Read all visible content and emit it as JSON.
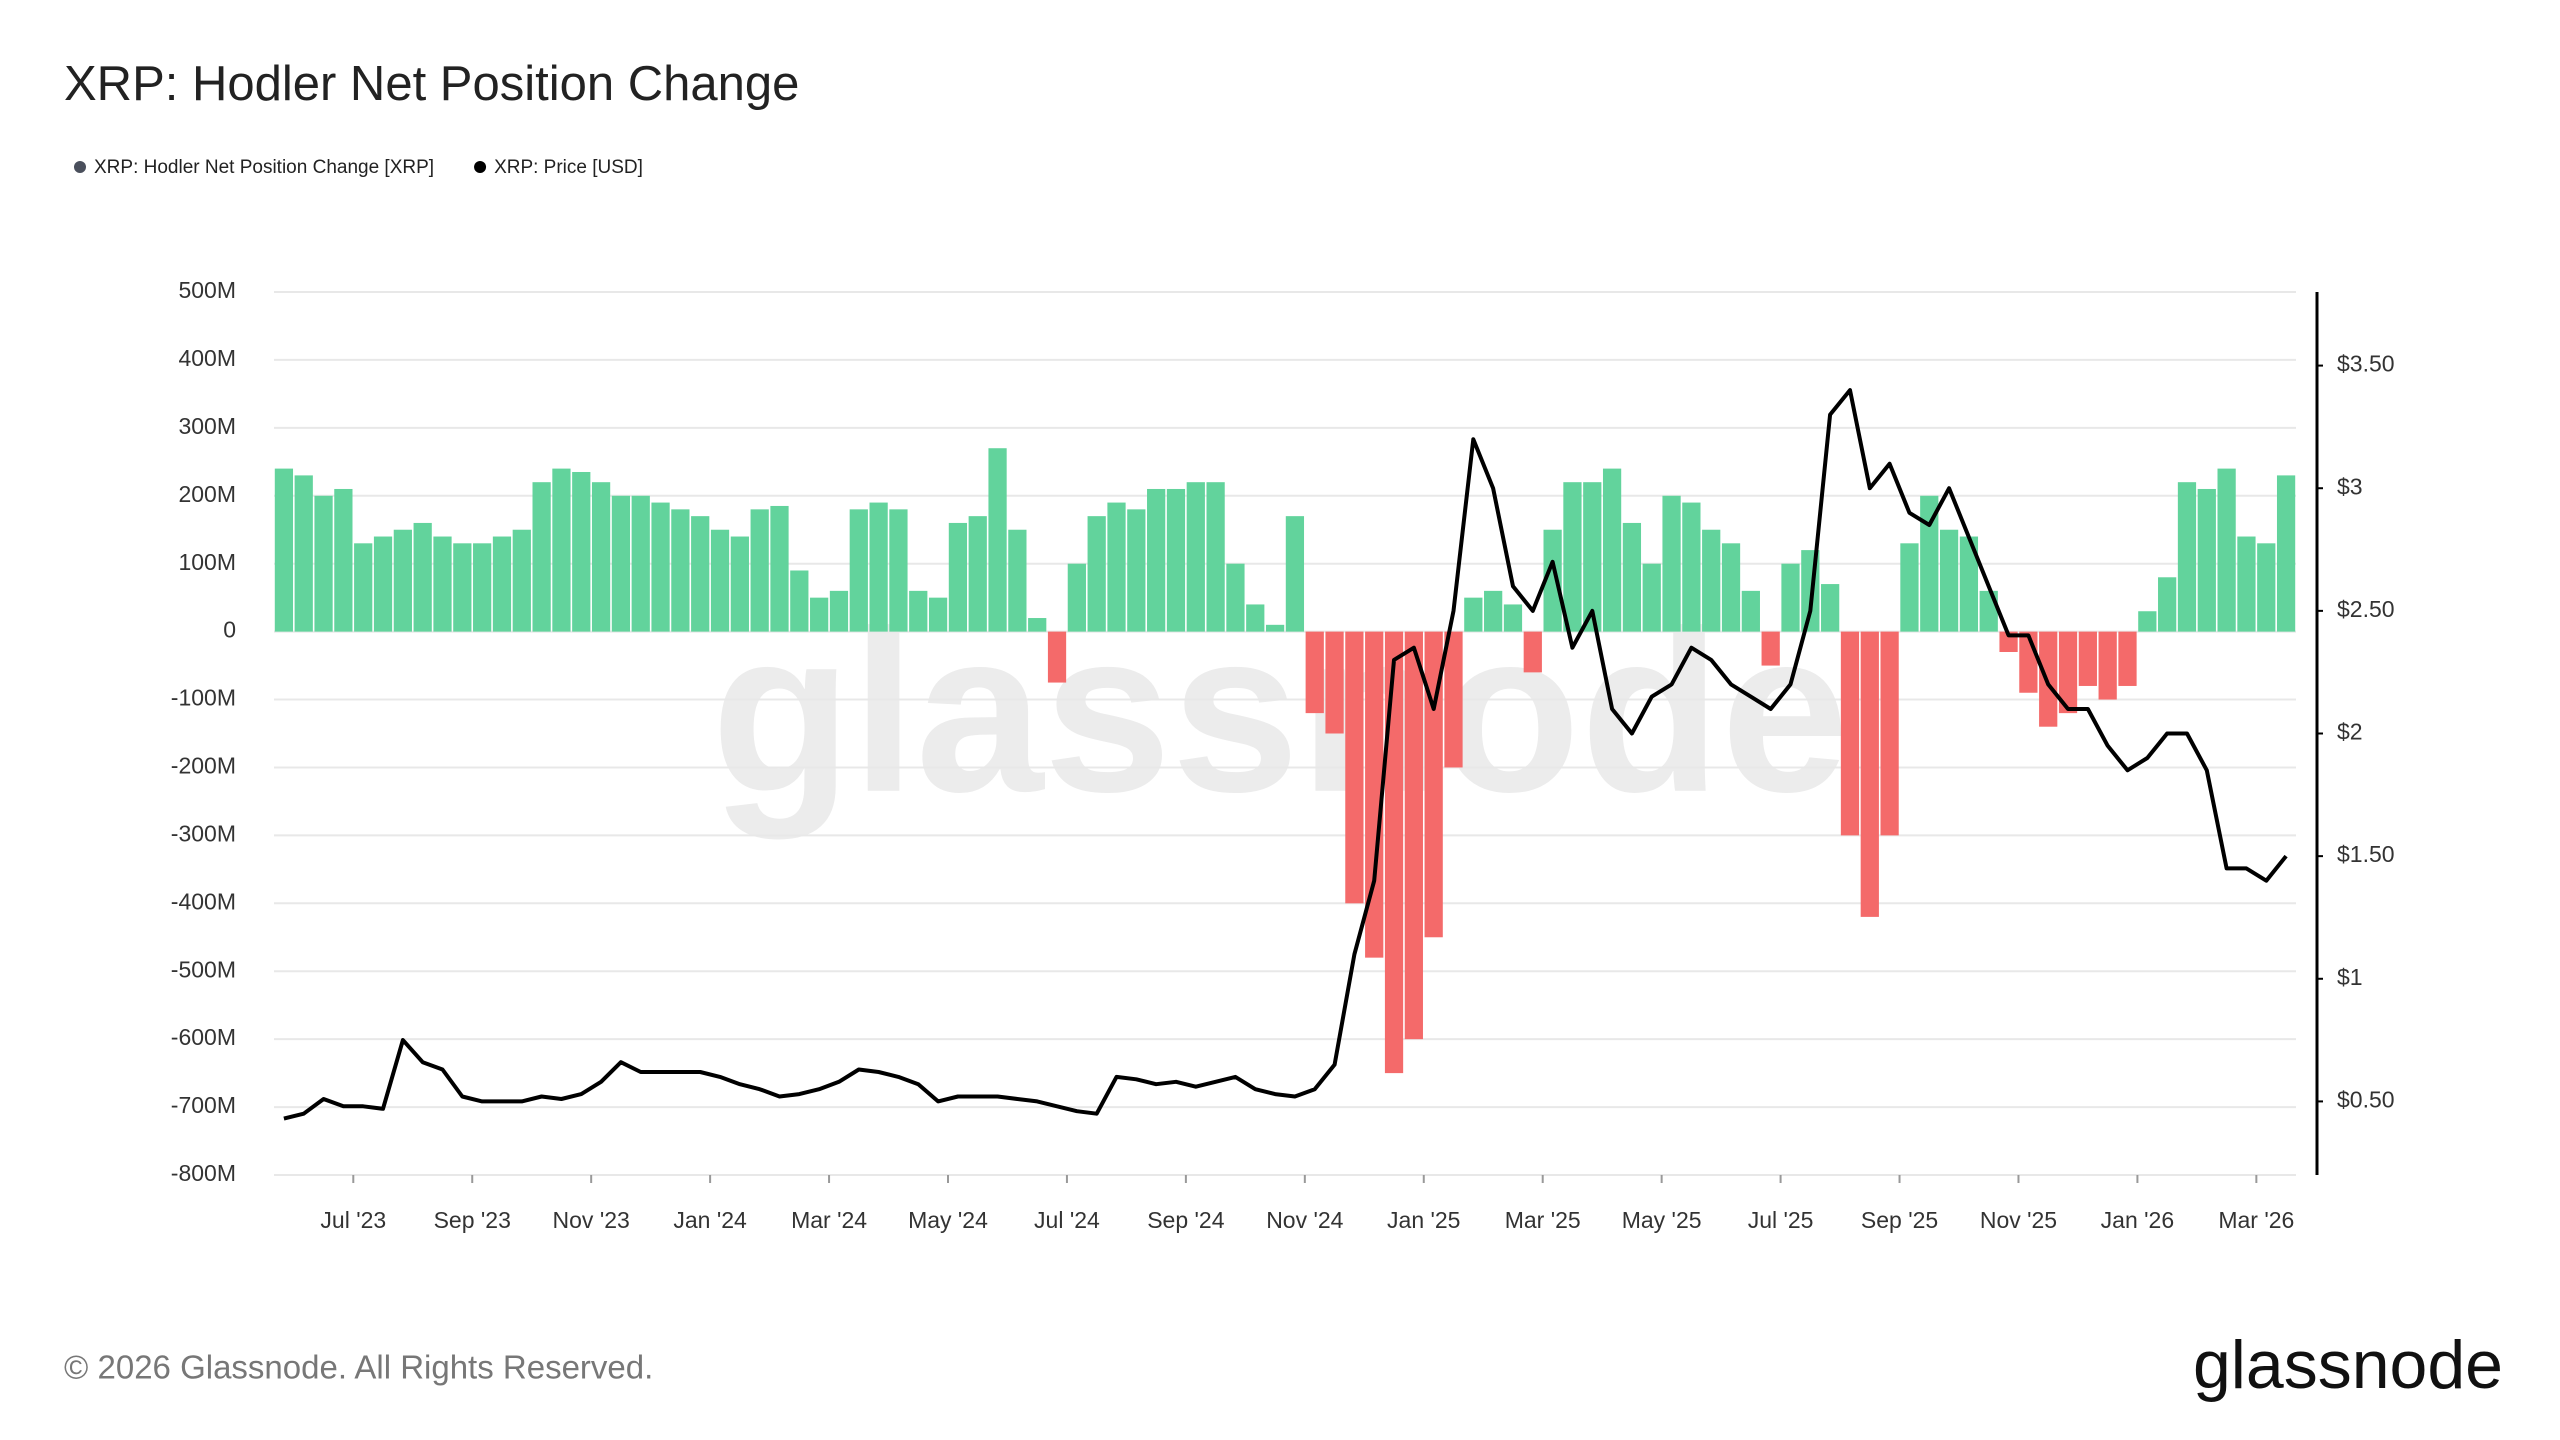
{
  "chart_data": {
    "type": "combo",
    "title": "XRP: Hodler Net Position Change",
    "watermark": "glassnode",
    "footer": "© 2026 Glassnode. All Rights Reserved.",
    "logo": "glassnode",
    "categories": [
      null,
      null,
      null,
      null,
      "Jul '23",
      null,
      null,
      null,
      null,
      null,
      "Sep '23",
      null,
      null,
      null,
      null,
      null,
      "Nov '23",
      null,
      null,
      null,
      null,
      null,
      "Jan '24",
      null,
      null,
      null,
      null,
      null,
      "Mar '24",
      null,
      null,
      null,
      null,
      null,
      "May '24",
      null,
      null,
      null,
      null,
      null,
      "Jul '24",
      null,
      null,
      null,
      null,
      null,
      "Sep '24",
      null,
      null,
      null,
      null,
      null,
      "Nov '24",
      null,
      null,
      null,
      null,
      null,
      "Jan '25",
      null,
      null,
      null,
      null,
      null,
      "Mar '25",
      null,
      null,
      null,
      null,
      null,
      "May '25",
      null,
      null,
      null,
      null,
      null,
      "Jul '25",
      null,
      null,
      null,
      null,
      null,
      "Sep '25",
      null,
      null,
      null,
      null,
      null,
      "Nov '25",
      null,
      null,
      null,
      null,
      null,
      "Jan '26",
      null,
      null,
      null,
      null,
      null,
      "Mar '26",
      null
    ],
    "series": [
      {
        "name": "XRP: Hodler Net Position Change [XRP]",
        "type": "bar",
        "axis": "y",
        "color": "#4a4f5c",
        "positive_color": "#62d39c",
        "negative_color": "#f46a6a",
        "values": [
          240000000.0,
          230000000.0,
          200000000.0,
          210000000.0,
          130000000.0,
          140000000.0,
          150000000.0,
          160000000.0,
          140000000.0,
          130000000.0,
          130000000.0,
          140000000.0,
          150000000.0,
          220000000.0,
          240000000.0,
          235000000.0,
          220000000.0,
          200000000.0,
          200000000.0,
          190000000.0,
          180000000.0,
          170000000.0,
          150000000.0,
          140000000.0,
          180000000.0,
          185000000.0,
          90000000.0,
          50000000.0,
          60000000.0,
          180000000.0,
          190000000.0,
          180000000.0,
          60000000.0,
          50000000.0,
          160000000.0,
          170000000.0,
          270000000.0,
          150000000.0,
          20000000.0,
          -75000000.0,
          100000000.0,
          170000000.0,
          190000000.0,
          180000000.0,
          210000000.0,
          210000000.0,
          220000000.0,
          220000000.0,
          100000000.0,
          40000000.0,
          10000000.0,
          170000000.0,
          -120000000.0,
          -150000000.0,
          -400000000.0,
          -480000000.0,
          -650000000.0,
          -600000000.0,
          -450000000.0,
          -200000000.0,
          50000000.0,
          60000000.0,
          40000000.0,
          -60000000.0,
          150000000.0,
          220000000.0,
          220000000.0,
          240000000.0,
          160000000.0,
          100000000.0,
          200000000.0,
          190000000.0,
          150000000.0,
          130000000.0,
          60000000.0,
          -50000000.0,
          100000000.0,
          120000000.0,
          70000000.0,
          -300000000.0,
          -420000000.0,
          -300000000.0,
          130000000.0,
          200000000.0,
          150000000.0,
          140000000.0,
          60000000.0,
          -30000000.0,
          -90000000.0,
          -140000000.0,
          -120000000.0,
          -80000000.0,
          -100000000.0,
          -80000000.0,
          30000000.0,
          80000000.0,
          220000000.0,
          210000000.0,
          240000000.0,
          140000000.0,
          130000000.0,
          230000000.0
        ]
      },
      {
        "name": "XRP: Price [USD]",
        "type": "line",
        "axis": "y2",
        "color": "#000000",
        "values": [
          0.43,
          0.45,
          0.51,
          0.48,
          0.48,
          0.47,
          0.75,
          0.66,
          0.63,
          0.52,
          0.5,
          0.5,
          0.5,
          0.52,
          0.51,
          0.53,
          0.58,
          0.66,
          0.62,
          0.62,
          0.62,
          0.62,
          0.6,
          0.57,
          0.55,
          0.52,
          0.53,
          0.55,
          0.58,
          0.63,
          0.62,
          0.6,
          0.57,
          0.5,
          0.52,
          0.52,
          0.52,
          0.51,
          0.5,
          0.48,
          0.46,
          0.45,
          0.6,
          0.59,
          0.57,
          0.58,
          0.56,
          0.58,
          0.6,
          0.55,
          0.53,
          0.52,
          0.55,
          0.65,
          1.1,
          1.4,
          2.3,
          2.35,
          2.1,
          2.5,
          3.2,
          3.0,
          2.6,
          2.5,
          2.7,
          2.35,
          2.5,
          2.1,
          2.0,
          2.15,
          2.2,
          2.35,
          2.3,
          2.2,
          2.15,
          2.1,
          2.2,
          2.5,
          3.3,
          3.4,
          3.0,
          3.1,
          2.9,
          2.85,
          3.0,
          2.8,
          2.6,
          2.4,
          2.4,
          2.2,
          2.1,
          2.1,
          1.95,
          1.85,
          1.9,
          2.0,
          2.0,
          1.85,
          1.45,
          1.45,
          1.4,
          1.5
        ]
      }
    ],
    "ylim": [
      -800000000.0,
      500000000.0
    ],
    "yticks": [
      {
        "value": 500000000.0,
        "label": "500M"
      },
      {
        "value": 400000000.0,
        "label": "400M"
      },
      {
        "value": 300000000.0,
        "label": "300M"
      },
      {
        "value": 200000000.0,
        "label": "200M"
      },
      {
        "value": 100000000.0,
        "label": "100M"
      },
      0,
      {
        "value": -100000000.0,
        "label": "-100M"
      },
      {
        "value": -200000000.0,
        "label": "-200M"
      },
      {
        "value": -300000000.0,
        "label": "-300M"
      },
      {
        "value": -400000000.0,
        "label": "-400M"
      },
      {
        "value": -500000000.0,
        "label": "-500M"
      },
      {
        "value": -600000000.0,
        "label": "-600M"
      },
      {
        "value": -700000000.0,
        "label": "-700M"
      },
      {
        "value": -800000000.0,
        "label": "-800M"
      }
    ],
    "y2lim": [
      0.2,
      3.8
    ],
    "y2ticks": [
      {
        "value": 0.5,
        "label": "$0.50"
      },
      {
        "value": 1,
        "label": "$1"
      },
      {
        "value": 1.5,
        "label": "$1.50"
      },
      {
        "value": 2,
        "label": "$2"
      },
      {
        "value": 2.5,
        "label": "$2.50"
      },
      {
        "value": 3,
        "label": "$3"
      },
      {
        "value": 3.5,
        "label": "$3.50"
      }
    ],
    "grid": true
  }
}
